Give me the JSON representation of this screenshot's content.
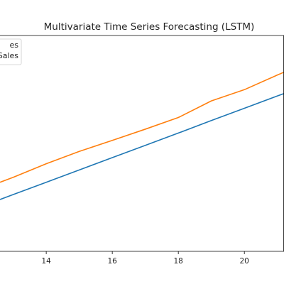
{
  "chart_data": {
    "type": "line",
    "title": "Multivariate Time Series Forecasting (LSTM)",
    "xlabel": "",
    "ylabel": "",
    "xlim": [
      12.6,
      21.2
    ],
    "ylim": [
      0,
      1
    ],
    "x_ticks": [
      14,
      16,
      18,
      20
    ],
    "grid": false,
    "legend_position": "top-left",
    "series": [
      {
        "name": "es",
        "color": "#1f77b4",
        "x": [
          12.6,
          13,
          14,
          15,
          16,
          17,
          18,
          19,
          20,
          21,
          21.2
        ],
        "y": [
          0.24,
          0.263,
          0.32,
          0.377,
          0.434,
          0.491,
          0.548,
          0.606,
          0.663,
          0.72,
          0.731
        ]
      },
      {
        "name": "Sales",
        "color": "#ff7f0e",
        "x": [
          12.6,
          13,
          14,
          15,
          16,
          17,
          18,
          19,
          20,
          21,
          21.2
        ],
        "y": [
          0.32,
          0.343,
          0.406,
          0.463,
          0.514,
          0.566,
          0.62,
          0.697,
          0.749,
          0.817,
          0.83
        ]
      }
    ]
  }
}
